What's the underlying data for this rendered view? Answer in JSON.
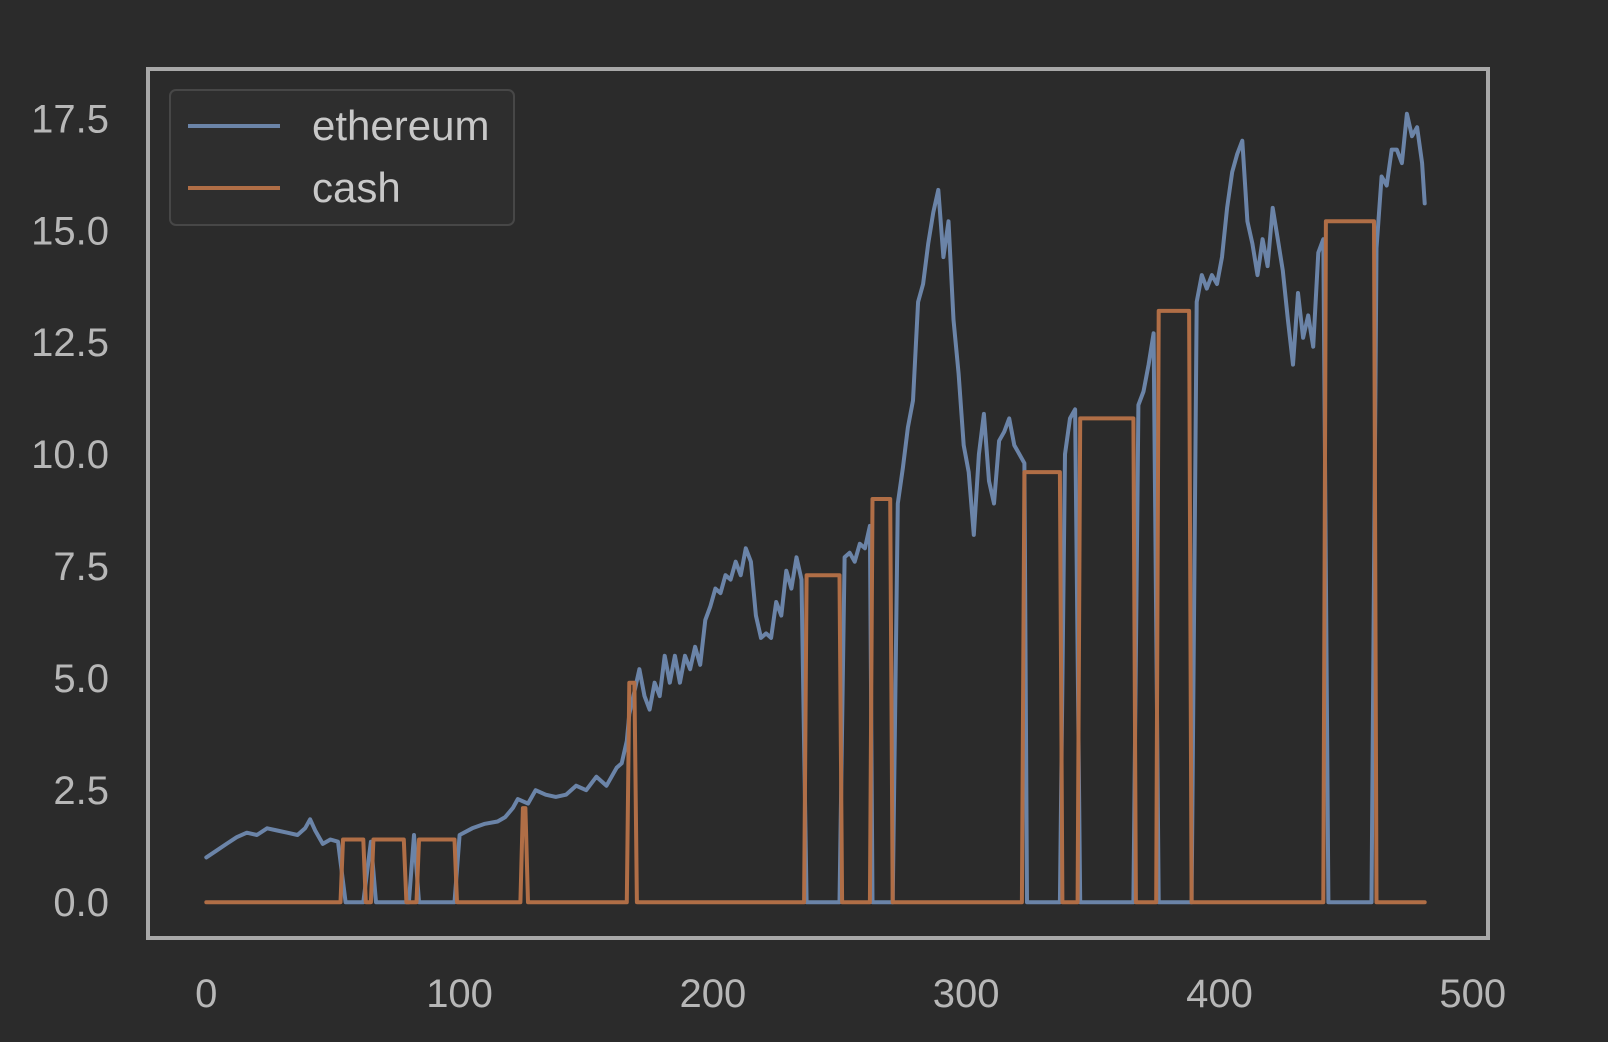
{
  "colors": {
    "background": "#2b2b2b",
    "frame": "#a8a8a8",
    "tick_text": "#b7b7b7",
    "legend_bg": "#2e2e2e",
    "legend_border": "#474747",
    "ethereum": "#6b84a8",
    "cash": "#b06e46"
  },
  "chart_data": {
    "type": "line",
    "title": "",
    "xlabel": "",
    "ylabel": "",
    "xlim": [
      -23,
      506
    ],
    "ylim": [
      -0.8,
      18.6
    ],
    "grid": false,
    "legend_position": "top-left",
    "x_ticks": [
      0,
      100,
      200,
      300,
      400,
      500
    ],
    "x_tick_labels": [
      "0",
      "100",
      "200",
      "300",
      "400",
      "500"
    ],
    "y_ticks": [
      0,
      2.5,
      5,
      7.5,
      10,
      12.5,
      15,
      17.5
    ],
    "y_tick_labels": [
      "0.0",
      "2.5",
      "5.0",
      "7.5",
      "10.0",
      "12.5",
      "15.0",
      "17.5"
    ],
    "legend": [
      "ethereum",
      "cash"
    ],
    "series": [
      {
        "name": "ethereum",
        "color": "#6b84a8",
        "points": [
          [
            0,
            1.0
          ],
          [
            4,
            1.15
          ],
          [
            8,
            1.3
          ],
          [
            12,
            1.45
          ],
          [
            16,
            1.55
          ],
          [
            20,
            1.5
          ],
          [
            24,
            1.65
          ],
          [
            28,
            1.6
          ],
          [
            32,
            1.55
          ],
          [
            36,
            1.5
          ],
          [
            39,
            1.65
          ],
          [
            41,
            1.85
          ],
          [
            43,
            1.6
          ],
          [
            46,
            1.3
          ],
          [
            49,
            1.4
          ],
          [
            52,
            1.35
          ],
          [
            55,
            0
          ],
          [
            62,
            0
          ],
          [
            65,
            1.35
          ],
          [
            67,
            0
          ],
          [
            80,
            0
          ],
          [
            82,
            1.5
          ],
          [
            84,
            0
          ],
          [
            98,
            0
          ],
          [
            100,
            1.5
          ],
          [
            105,
            1.65
          ],
          [
            110,
            1.75
          ],
          [
            115,
            1.8
          ],
          [
            118,
            1.9
          ],
          [
            121,
            2.1
          ],
          [
            123,
            2.3
          ],
          [
            127,
            2.2
          ],
          [
            130,
            2.5
          ],
          [
            134,
            2.4
          ],
          [
            138,
            2.35
          ],
          [
            142,
            2.4
          ],
          [
            146,
            2.6
          ],
          [
            150,
            2.5
          ],
          [
            154,
            2.8
          ],
          [
            158,
            2.6
          ],
          [
            162,
            3.0
          ],
          [
            164,
            3.1
          ],
          [
            166,
            3.6
          ],
          [
            167,
            4.2
          ],
          [
            169,
            4.7
          ],
          [
            171,
            5.2
          ],
          [
            173,
            4.6
          ],
          [
            175,
            4.3
          ],
          [
            177,
            4.9
          ],
          [
            179,
            4.6
          ],
          [
            181,
            5.5
          ],
          [
            183,
            4.9
          ],
          [
            185,
            5.5
          ],
          [
            187,
            4.9
          ],
          [
            189,
            5.5
          ],
          [
            191,
            5.2
          ],
          [
            193,
            5.7
          ],
          [
            195,
            5.3
          ],
          [
            197,
            6.3
          ],
          [
            199,
            6.6
          ],
          [
            201,
            7.0
          ],
          [
            203,
            6.9
          ],
          [
            205,
            7.3
          ],
          [
            207,
            7.2
          ],
          [
            209,
            7.6
          ],
          [
            211,
            7.3
          ],
          [
            213,
            7.9
          ],
          [
            215,
            7.6
          ],
          [
            217,
            6.4
          ],
          [
            219,
            5.9
          ],
          [
            221,
            6.0
          ],
          [
            223,
            5.9
          ],
          [
            225,
            6.7
          ],
          [
            227,
            6.4
          ],
          [
            229,
            7.4
          ],
          [
            231,
            7.0
          ],
          [
            233,
            7.7
          ],
          [
            235,
            7.2
          ],
          [
            237,
            0
          ],
          [
            250,
            0
          ],
          [
            252,
            7.7
          ],
          [
            254,
            7.8
          ],
          [
            256,
            7.6
          ],
          [
            258,
            8.0
          ],
          [
            260,
            7.9
          ],
          [
            262,
            8.4
          ],
          [
            263,
            0
          ],
          [
            271,
            0
          ],
          [
            273,
            8.9
          ],
          [
            275,
            9.7
          ],
          [
            277,
            10.6
          ],
          [
            279,
            11.2
          ],
          [
            281,
            13.4
          ],
          [
            283,
            13.8
          ],
          [
            285,
            14.7
          ],
          [
            287,
            15.4
          ],
          [
            289,
            15.9
          ],
          [
            291,
            14.4
          ],
          [
            293,
            15.2
          ],
          [
            295,
            13.0
          ],
          [
            297,
            11.8
          ],
          [
            299,
            10.2
          ],
          [
            301,
            9.6
          ],
          [
            303,
            8.2
          ],
          [
            305,
            10.0
          ],
          [
            307,
            10.9
          ],
          [
            309,
            9.4
          ],
          [
            311,
            8.9
          ],
          [
            313,
            10.3
          ],
          [
            315,
            10.5
          ],
          [
            317,
            10.8
          ],
          [
            319,
            10.2
          ],
          [
            321,
            10.0
          ],
          [
            323,
            9.8
          ],
          [
            324,
            0
          ],
          [
            337,
            0
          ],
          [
            339,
            10.0
          ],
          [
            341,
            10.8
          ],
          [
            343,
            11.0
          ],
          [
            345,
            0
          ],
          [
            366,
            0
          ],
          [
            368,
            11.1
          ],
          [
            370,
            11.4
          ],
          [
            372,
            12.0
          ],
          [
            374,
            12.7
          ],
          [
            376,
            0
          ],
          [
            389,
            0
          ],
          [
            391,
            13.4
          ],
          [
            393,
            14.0
          ],
          [
            395,
            13.7
          ],
          [
            397,
            14.0
          ],
          [
            399,
            13.8
          ],
          [
            401,
            14.4
          ],
          [
            403,
            15.5
          ],
          [
            405,
            16.3
          ],
          [
            407,
            16.7
          ],
          [
            409,
            17.0
          ],
          [
            411,
            15.2
          ],
          [
            413,
            14.7
          ],
          [
            415,
            14.0
          ],
          [
            417,
            14.8
          ],
          [
            419,
            14.2
          ],
          [
            421,
            15.5
          ],
          [
            423,
            14.8
          ],
          [
            425,
            14.1
          ],
          [
            427,
            13.0
          ],
          [
            429,
            12.0
          ],
          [
            431,
            13.6
          ],
          [
            433,
            12.6
          ],
          [
            435,
            13.1
          ],
          [
            437,
            12.4
          ],
          [
            439,
            14.5
          ],
          [
            441,
            14.8
          ],
          [
            443,
            0
          ],
          [
            460,
            0
          ],
          [
            462,
            14.6
          ],
          [
            464,
            16.2
          ],
          [
            466,
            16.0
          ],
          [
            468,
            16.8
          ],
          [
            470,
            16.8
          ],
          [
            472,
            16.5
          ],
          [
            474,
            17.6
          ],
          [
            476,
            17.1
          ],
          [
            478,
            17.3
          ],
          [
            480,
            16.5
          ],
          [
            481,
            15.6
          ]
        ]
      },
      {
        "name": "cash",
        "color": "#b06e46",
        "points": [
          [
            0,
            0
          ],
          [
            53,
            0
          ],
          [
            54,
            1.4
          ],
          [
            62,
            1.4
          ],
          [
            63,
            0
          ],
          [
            65,
            0
          ],
          [
            66,
            1.4
          ],
          [
            78,
            1.4
          ],
          [
            79,
            0
          ],
          [
            83,
            0
          ],
          [
            84,
            1.4
          ],
          [
            98,
            1.4
          ],
          [
            99,
            0
          ],
          [
            124,
            0
          ],
          [
            125,
            2.1
          ],
          [
            126,
            2.1
          ],
          [
            127,
            0
          ],
          [
            166,
            0
          ],
          [
            167,
            4.9
          ],
          [
            169,
            4.9
          ],
          [
            170,
            0
          ],
          [
            236,
            0
          ],
          [
            237,
            7.3
          ],
          [
            250,
            7.3
          ],
          [
            251,
            0
          ],
          [
            262,
            0
          ],
          [
            263,
            9.0
          ],
          [
            270,
            9.0
          ],
          [
            271,
            0
          ],
          [
            322,
            0
          ],
          [
            323,
            9.6
          ],
          [
            337,
            9.6
          ],
          [
            338,
            0
          ],
          [
            344,
            0
          ],
          [
            345,
            10.8
          ],
          [
            366,
            10.8
          ],
          [
            367,
            0
          ],
          [
            375,
            0
          ],
          [
            376,
            13.2
          ],
          [
            388,
            13.2
          ],
          [
            389,
            0
          ],
          [
            441,
            0
          ],
          [
            442,
            15.2
          ],
          [
            461,
            15.2
          ],
          [
            462,
            0
          ],
          [
            481,
            0
          ]
        ]
      }
    ]
  }
}
